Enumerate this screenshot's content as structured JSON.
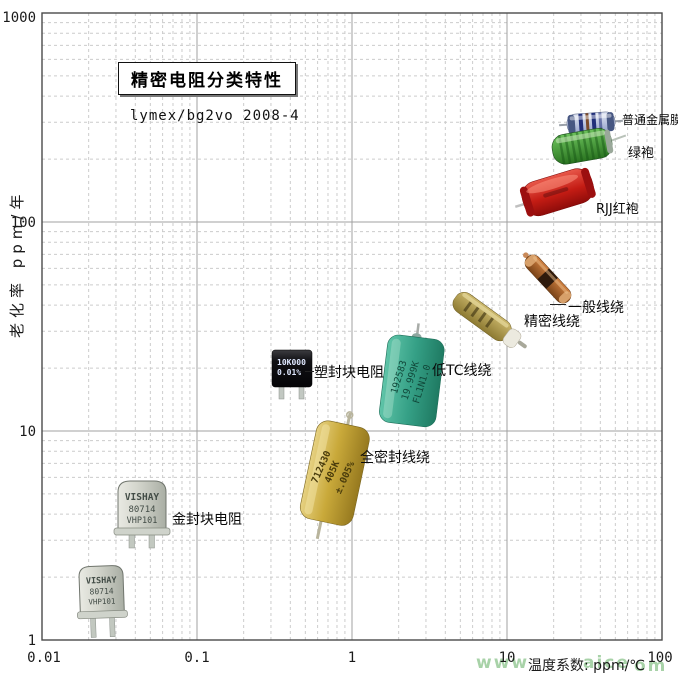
{
  "title": "精密电阻分类特性",
  "subtitle": "lymex/bg2vo 2008-4",
  "axes": {
    "y_label": "老化率 ppm/年",
    "x_label": "温度系数: ppm/℃",
    "y_ticks": [
      "1000",
      "100",
      "10",
      "1"
    ],
    "x_ticks": [
      "0.01",
      "0.1",
      "1",
      "10",
      "100"
    ]
  },
  "watermark": {
    "part1": "www",
    "part2": "aice",
    "part3": "om"
  },
  "chart_data": {
    "type": "scatter",
    "title": "精密电阻分类特性",
    "xlabel": "温度系数: ppm/℃",
    "ylabel": "老化率 ppm/年",
    "x_scale": "log",
    "y_scale": "log",
    "xlim": [
      0.01,
      100
    ],
    "ylim": [
      1,
      1000
    ],
    "grid": true,
    "points": [
      {
        "label": "普通金属膜",
        "x": 35,
        "y": 300
      },
      {
        "label": "绿袍",
        "x": 30,
        "y": 220
      },
      {
        "label": "RJJ红袍",
        "x": 20,
        "y": 130
      },
      {
        "label": "一般线绕",
        "x": 18,
        "y": 50
      },
      {
        "label": "精密线绕",
        "x": 8,
        "y": 32
      },
      {
        "label": "低TC线绕",
        "x": 2.5,
        "y": 18
      },
      {
        "label": "塑封块电阻",
        "x": 0.4,
        "y": 19
      },
      {
        "label": "全密封线绕",
        "x": 0.75,
        "y": 6.5
      },
      {
        "label": "金封块电阻",
        "x": 0.05,
        "y": 4
      },
      {
        "label": "金封块电阻(VISHAY)",
        "x": 0.025,
        "y": 1.6
      }
    ]
  },
  "resistors": {
    "metal_film": {
      "label": "普通金属膜"
    },
    "green_robe": {
      "label": "绿袍"
    },
    "rjj_red": {
      "label": "RJJ红袍"
    },
    "general_ww": {
      "label": "一般线绕"
    },
    "precision_ww": {
      "label": "精密线绕"
    },
    "low_tc": {
      "label": "低TC线绕",
      "body_line1": "192583",
      "body_line2": "19.999K",
      "body_line3": "FL1N1.0"
    },
    "plastic_block": {
      "label": "塑封块电阻",
      "body_line1": "10K000",
      "body_line2": "0.01%"
    },
    "sealed_ww": {
      "label": "全密封线绕",
      "body_line1": "712430",
      "body_line2": "405K",
      "body_line3": "±.005%"
    },
    "gold_block": {
      "label": "金封块电阻",
      "body_line1": "VISHAY",
      "body_line2": "80714",
      "body_line3": "VHP101"
    },
    "vishay_can": {
      "body_line1": "VISHAY",
      "body_line2": "80714",
      "body_line3": "VHP101"
    }
  },
  "colors": {
    "grid_minor": "#cccccc",
    "grid_major": "#a0a0a0",
    "plot_border": "#4a4a4a",
    "watermark": "#a8d2a8",
    "red_body": "#b01010",
    "green_body": "#2e7c24",
    "teal_body": "#2a8f78",
    "gold_body": "#c9a93a"
  }
}
